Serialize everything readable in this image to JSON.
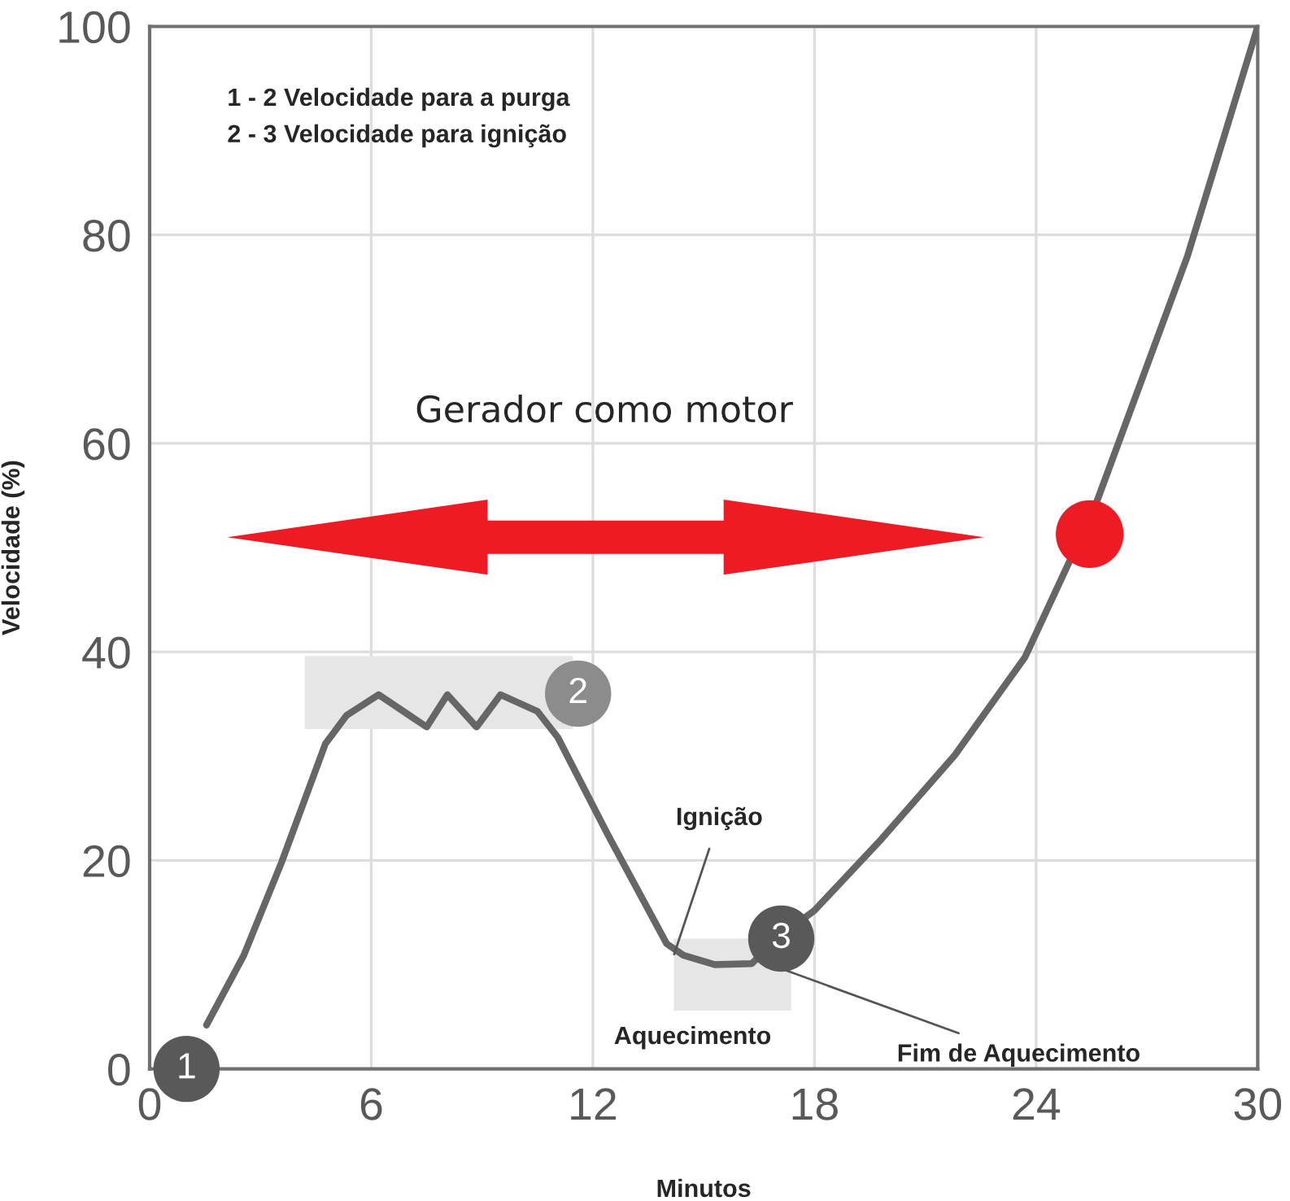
{
  "chart_data": {
    "type": "line",
    "xlabel": "Minutos",
    "ylabel": "Velocidade (%)",
    "xlim": [
      0,
      30
    ],
    "xticks": [
      0,
      6,
      12,
      18,
      24,
      30
    ],
    "ylim": [
      0,
      100
    ],
    "yticks": [
      0,
      20,
      40,
      60,
      80,
      100
    ],
    "grid": true,
    "line_style": "solid",
    "series": [
      {
        "marker": "none",
        "color": "#666666",
        "x": [
          1.54,
          2.55,
          3.57,
          4.76,
          5.33,
          6.2,
          7.5,
          8.06,
          8.85,
          9.5,
          10.5,
          11.05,
          12.4,
          14.0,
          14.45,
          15.3,
          16.3,
          17.1,
          18.0,
          19.8,
          21.8,
          23.7,
          25.6,
          28.1,
          30
        ],
        "values": [
          4.2,
          10.9,
          19.8,
          31.2,
          33.9,
          35.9,
          32.8,
          35.9,
          32.8,
          35.9,
          34.3,
          31.8,
          22.5,
          12.0,
          10.9,
          10.0,
          10.1,
          12.8,
          15.2,
          22.0,
          30.1,
          39.5,
          54,
          78,
          100
        ]
      },
      {
        "type": "scatter",
        "marker": "circle",
        "color": "#ed1c24",
        "x": [
          25.45
        ],
        "values": [
          51.3
        ]
      }
    ],
    "annotations": [
      "1 - 2 Velocidade para a purga",
      "2 - 3 Velocidade para ignição",
      "Gerador como motor",
      {
        "text": "1",
        "x": 1,
        "y": 0
      },
      {
        "text": "2",
        "x": 11.6,
        "y": 36
      },
      {
        "text": "3",
        "x": 17.1,
        "y": 12.5
      },
      {
        "text": "Ignição",
        "x": 14.2,
        "y": 11
      },
      "Aquecimento",
      {
        "text": "Fim de Aquecimento",
        "x": 16.8,
        "y": 10
      }
    ]
  }
}
